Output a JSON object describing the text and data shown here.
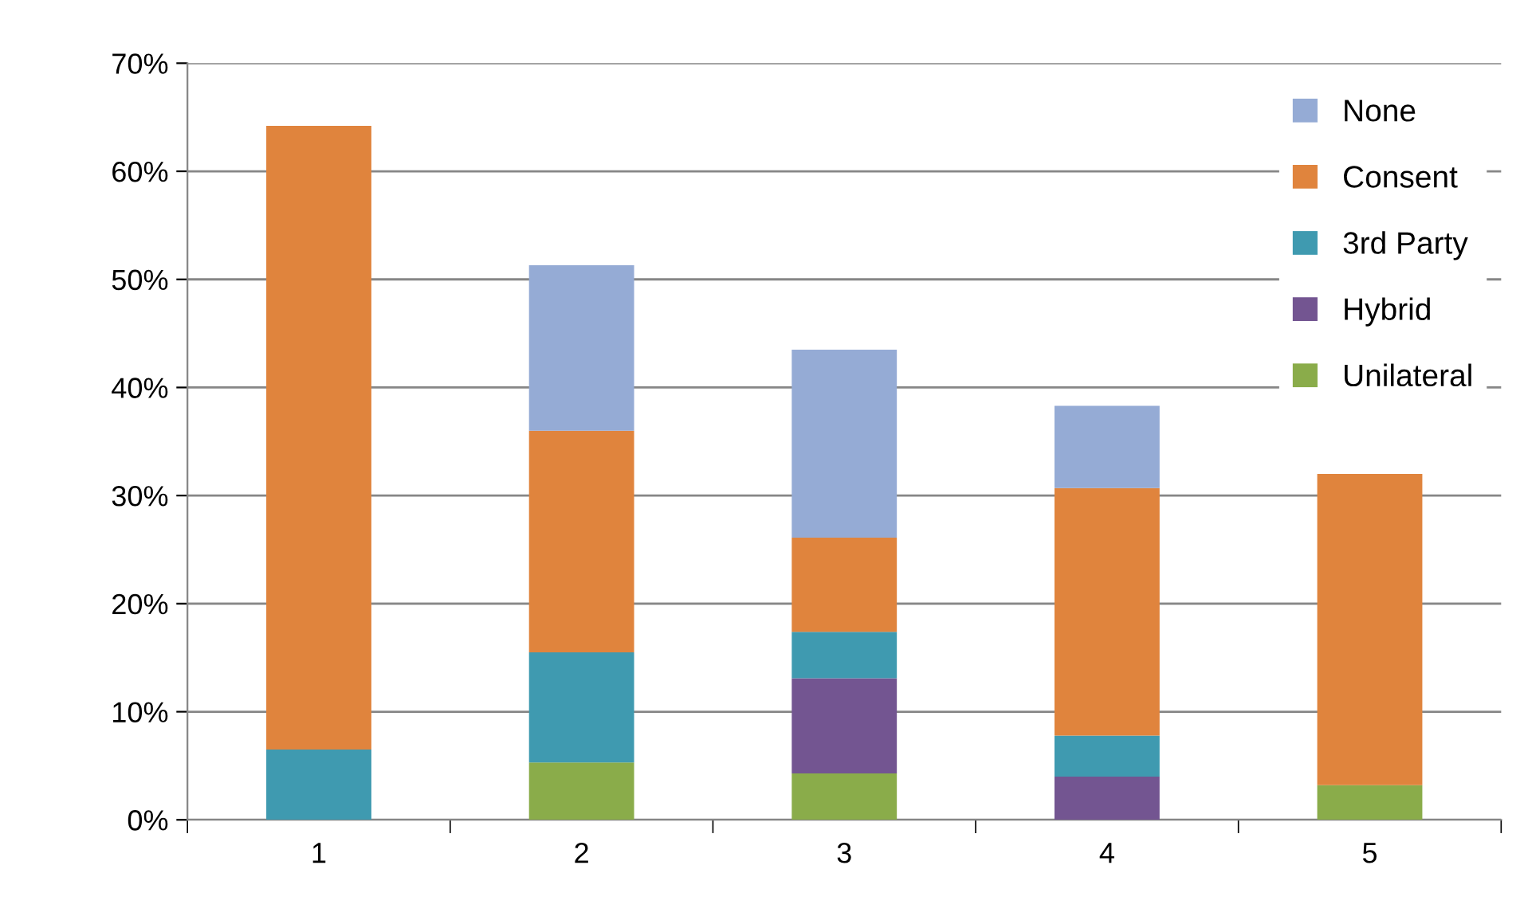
{
  "chart_data": {
    "type": "bar",
    "stacked": true,
    "categories": [
      "1",
      "2",
      "3",
      "4",
      "5"
    ],
    "series": [
      {
        "name": "Unilateral",
        "color": "#8aac4a",
        "values": [
          null,
          5.3,
          4.3,
          null,
          3.2
        ]
      },
      {
        "name": "Hybrid",
        "color": "#735591",
        "values": [
          null,
          null,
          8.8,
          4.0,
          null
        ]
      },
      {
        "name": "3rd Party",
        "color": "#3f9ab0",
        "values": [
          6.5,
          10.2,
          4.3,
          3.8,
          null
        ]
      },
      {
        "name": "Consent",
        "color": "#e0843d",
        "values": [
          57.7,
          20.5,
          8.7,
          22.9,
          28.8
        ]
      },
      {
        "name": "None",
        "color": "#95abd5",
        "values": [
          null,
          15.3,
          17.4,
          7.6,
          null
        ]
      }
    ],
    "ylim": [
      0,
      70
    ],
    "yticks": [
      {
        "value": 0,
        "label": "0%"
      },
      {
        "value": 10,
        "label": "10%"
      },
      {
        "value": 20,
        "label": "20%"
      },
      {
        "value": 30,
        "label": "30%"
      },
      {
        "value": 40,
        "label": "40%"
      },
      {
        "value": 50,
        "label": "50%"
      },
      {
        "value": 60,
        "label": "60%"
      },
      {
        "value": 70,
        "label": "70%"
      }
    ],
    "grid": "y",
    "legend": "top right"
  }
}
